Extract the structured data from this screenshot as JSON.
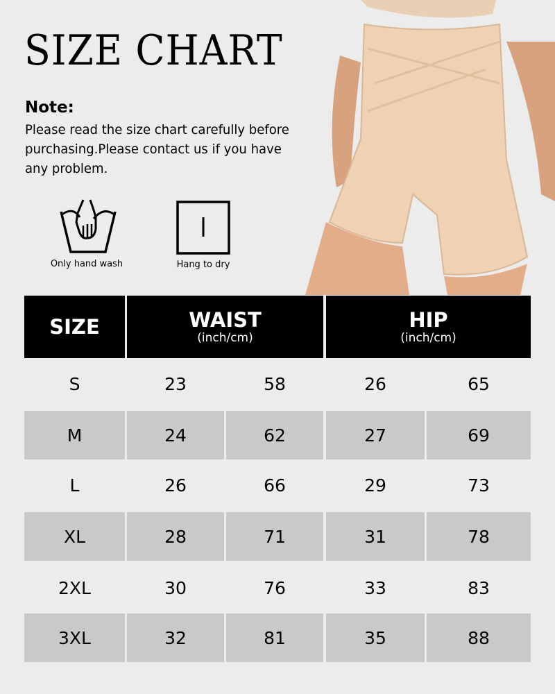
{
  "title": "SIZE CHART",
  "note": {
    "heading": "Note:",
    "text": "Please read the size chart carefully before purchasing.Please contact us if you have any problem."
  },
  "care": [
    {
      "icon": "hand-wash-icon",
      "label": "Only hand wash"
    },
    {
      "icon": "hang-dry-icon",
      "label": "Hang to dry"
    }
  ],
  "table": {
    "headers": {
      "size": "SIZE",
      "waist": "WAIST",
      "waist_unit": "(inch/cm)",
      "hip": "HIP",
      "hip_unit": "(inch/cm)"
    },
    "rows": [
      [
        "S",
        "23",
        "58",
        "26",
        "65"
      ],
      [
        "M",
        "24",
        "62",
        "27",
        "69"
      ],
      [
        "L",
        "26",
        "66",
        "29",
        "73"
      ],
      [
        "XL",
        "28",
        "71",
        "31",
        "78"
      ],
      [
        "2XL",
        "30",
        "76",
        "33",
        "83"
      ],
      [
        "3XL",
        "32",
        "81",
        "35",
        "88"
      ]
    ]
  },
  "colors": {
    "background": "#ececec",
    "header": "#000000",
    "stripe": "#c9c9c9",
    "product": "#efd2b4"
  }
}
